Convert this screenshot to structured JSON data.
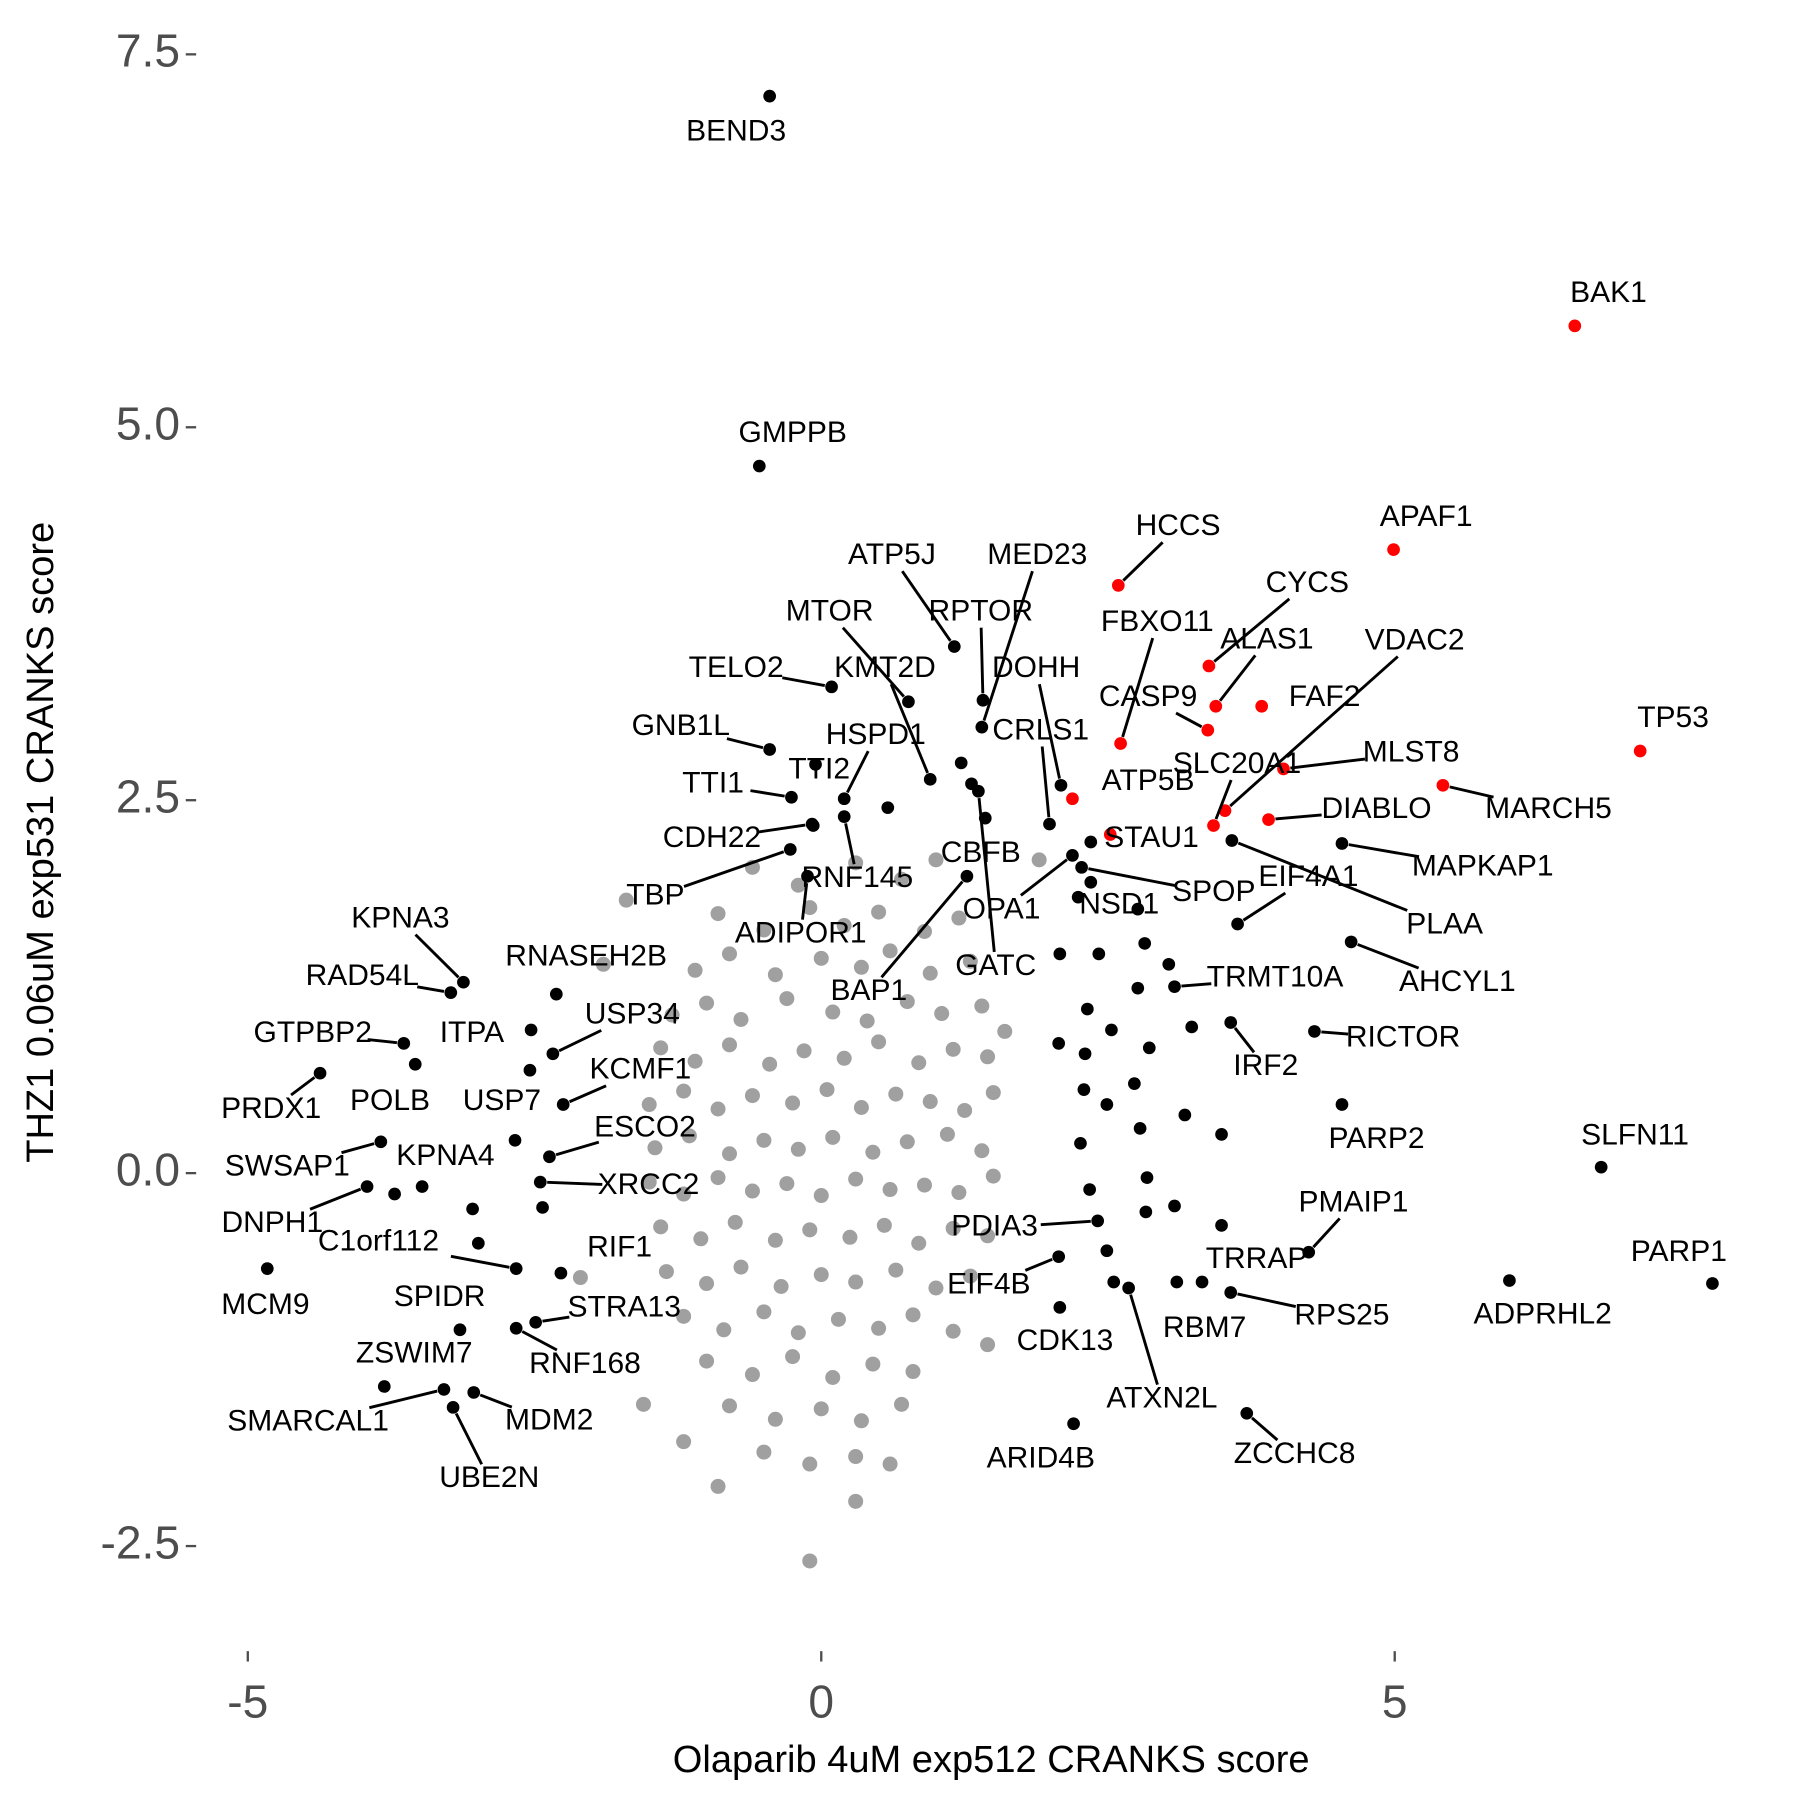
{
  "chart_data": {
    "type": "scatter",
    "xlabel": "Olaparib 4uM exp512 CRANKS score",
    "ylabel": "THZ1 0.06uM exp531 CRANKS score",
    "xlim": [
      -5.41,
      7.94
    ],
    "ylim": [
      -2.81,
      7.64
    ],
    "xticks": [
      -5,
      0,
      5
    ],
    "yticks": [
      7.5,
      {
        "value": 5,
        "label": "5.0"
      },
      2.5,
      {
        "value": 0,
        "label": "0.0"
      },
      -2.5
    ],
    "grid": false,
    "series": [
      {
        "color": "#a0a0a0",
        "x": [
          -0.6,
          -0.2,
          0.3,
          0.7,
          1.0,
          -0.9,
          -0.5,
          -0.1,
          0.2,
          0.5,
          0.9,
          1.2,
          -1.1,
          -0.8,
          -0.4,
          0.0,
          0.35,
          0.6,
          0.95,
          1.3,
          -1.3,
          -1.0,
          -0.7,
          -0.3,
          0.1,
          0.4,
          0.75,
          1.05,
          1.4,
          -1.4,
          -1.1,
          -0.8,
          -0.45,
          -0.15,
          0.2,
          0.5,
          0.85,
          1.15,
          1.45,
          -1.5,
          -1.2,
          -0.9,
          -0.6,
          -0.25,
          0.05,
          0.35,
          0.65,
          0.95,
          1.25,
          1.5,
          -1.45,
          -1.15,
          -0.8,
          -0.5,
          -0.2,
          0.1,
          0.45,
          0.75,
          1.1,
          1.4,
          -1.5,
          -1.2,
          -0.9,
          -0.6,
          -0.3,
          0.0,
          0.3,
          0.6,
          0.9,
          1.2,
          1.5,
          -1.4,
          -1.05,
          -0.75,
          -0.4,
          -0.1,
          0.25,
          0.55,
          0.85,
          1.15,
          1.45,
          -1.35,
          -1.0,
          -0.7,
          -0.35,
          0.0,
          0.3,
          0.65,
          1.0,
          1.3,
          -1.2,
          -0.85,
          -0.5,
          -0.2,
          0.15,
          0.5,
          0.8,
          1.15,
          -1.0,
          -0.6,
          -0.25,
          0.1,
          0.45,
          0.8,
          -0.8,
          -0.4,
          0.0,
          0.35,
          0.7,
          -0.5,
          -0.1,
          0.3,
          -1.7,
          -1.55,
          -1.2,
          -0.9,
          -0.1,
          0.3,
          0.6,
          1.45,
          1.6,
          1.9,
          -1.9,
          -2.1
        ],
        "y": [
          2.05,
          1.93,
          2.08,
          1.97,
          2.1,
          1.74,
          1.63,
          1.78,
          1.66,
          1.75,
          1.62,
          1.71,
          1.36,
          1.47,
          1.33,
          1.44,
          1.38,
          1.49,
          1.34,
          1.42,
          1.06,
          1.14,
          1.03,
          1.17,
          1.08,
          1.02,
          1.15,
          1.07,
          1.12,
          0.84,
          0.75,
          0.86,
          0.73,
          0.82,
          0.77,
          0.88,
          0.74,
          0.83,
          0.78,
          0.46,
          0.55,
          0.43,
          0.52,
          0.47,
          0.56,
          0.44,
          0.53,
          0.48,
          0.42,
          0.54,
          0.17,
          0.25,
          0.13,
          0.22,
          0.16,
          0.24,
          0.14,
          0.21,
          0.26,
          0.15,
          -0.06,
          -0.14,
          -0.03,
          -0.12,
          -0.07,
          -0.15,
          -0.04,
          -0.11,
          -0.08,
          -0.13,
          -0.02,
          -0.36,
          -0.44,
          -0.33,
          -0.45,
          -0.38,
          -0.43,
          -0.35,
          -0.47,
          -0.37,
          -0.42,
          -0.66,
          -0.74,
          -0.63,
          -0.76,
          -0.68,
          -0.73,
          -0.65,
          -0.77,
          -0.69,
          -0.96,
          -1.05,
          -0.93,
          -1.07,
          -0.98,
          -1.04,
          -0.95,
          -1.06,
          -1.26,
          -1.35,
          -1.23,
          -1.37,
          -1.28,
          -1.33,
          -1.56,
          -1.65,
          -1.58,
          -1.66,
          -1.55,
          -1.87,
          -1.95,
          -1.9,
          1.83,
          -1.55,
          -1.8,
          -2.1,
          -2.6,
          -2.2,
          -1.95,
          -1.15,
          0.95,
          2.1,
          1.4,
          -0.7
        ]
      },
      {
        "color": "#000000",
        "x": [
          -0.07,
          0.58,
          1.22,
          1.31,
          2.24,
          2.76,
          2.82,
          3.03,
          2.76,
          2.32,
          2.53,
          2.07,
          2.3,
          2.86,
          3.23,
          2.73,
          2.29,
          2.49,
          2.78,
          3.17,
          3.49,
          2.26,
          2.84,
          2.34,
          2.83,
          3.08,
          2.49,
          2.55,
          3.1,
          -2.67,
          -2.43,
          -2.99,
          -3.04,
          -3.72,
          2.08,
          2.42,
          2.35
        ],
        "y": [
          2.33,
          2.45,
          2.75,
          2.61,
          1.85,
          1.77,
          1.54,
          1.4,
          1.24,
          1.1,
          0.96,
          0.87,
          0.8,
          0.84,
          0.98,
          0.6,
          0.56,
          0.46,
          0.3,
          0.39,
          0.26,
          0.2,
          -0.03,
          -0.11,
          -0.26,
          -0.22,
          -0.52,
          -0.73,
          -0.73,
          0.22,
          -0.23,
          -0.47,
          -0.24,
          -0.14,
          1.47,
          1.47,
          2.22
        ]
      },
      {
        "color": "#000000",
        "labels": [
          "BEND3",
          "GMPPB",
          "ATP5J",
          "MED23",
          "MTOR",
          "RPTOR",
          "TELO2",
          "KMT2D",
          "GNB1L",
          "TTI1",
          "TTI2",
          "HSPD1",
          "DOHH",
          "CRLS1",
          "CDH22",
          "TBP",
          "RNF145",
          "ADIPOR1",
          "CBFB",
          "OPA1",
          "BAP1",
          "GATC",
          "NSD1",
          "SPOP",
          "PLAA",
          "EIF4A1",
          "MAPKAP1",
          "AHCYL1",
          "TRMT10A",
          "RICTOR",
          "IRF2",
          "PARP2",
          "SLFN11",
          "PMAIP1",
          "PARP1",
          "ADPRHL2",
          "TRRAP",
          "RPS25",
          "RBM7",
          "ZCCHC8",
          "ATXN2L",
          "CDK13",
          "ARID4B",
          "EIF4B",
          "PDIA3",
          "KPNA3",
          "RAD54L",
          "RNASEH2B",
          "ITPA",
          "USP34",
          "GTPBP2",
          "POLB",
          "KCMF1",
          "USP7",
          "PRDX1",
          "ESCO2",
          "KPNA4",
          "XRCC2",
          "SWSAP1",
          "DNPH1",
          "C1orf112",
          "RIF1",
          "MCM9",
          "SPIDR",
          "STRA13",
          "ZSWIM7",
          "RNF168",
          "SMARCAL1",
          "MDM2",
          "UBE2N"
        ],
        "x": [
          -0.45,
          -0.54,
          1.16,
          1.4,
          0.76,
          1.41,
          0.09,
          0.95,
          -0.45,
          -0.26,
          -0.05,
          0.2,
          2.09,
          1.99,
          -0.08,
          -0.27,
          0.2,
          -0.12,
          1.43,
          2.19,
          1.27,
          1.37,
          2.35,
          2.27,
          3.58,
          3.63,
          4.54,
          4.62,
          3.08,
          4.3,
          3.57,
          4.54,
          6.8,
          4.25,
          7.77,
          6.0,
          3.49,
          3.57,
          3.32,
          3.71,
          2.68,
          2.08,
          2.2,
          2.07,
          2.41,
          -3.12,
          -3.23,
          -2.31,
          -2.53,
          -2.34,
          -3.64,
          -3.54,
          -2.25,
          -2.54,
          -4.37,
          -2.37,
          -3.48,
          -2.45,
          -3.84,
          -3.96,
          -2.66,
          -2.27,
          -4.83,
          -3.15,
          -2.49,
          -3.81,
          -2.66,
          -3.29,
          -3.03,
          -3.21
        ],
        "y": [
          7.22,
          4.74,
          3.53,
          2.99,
          3.16,
          3.17,
          3.26,
          2.64,
          2.84,
          2.52,
          2.74,
          2.51,
          2.6,
          2.34,
          2.34,
          2.17,
          2.39,
          1.99,
          2.38,
          2.13,
          1.99,
          2.56,
          1.95,
          2.05,
          2.23,
          1.67,
          2.21,
          1.55,
          1.25,
          0.95,
          1.01,
          0.46,
          0.04,
          -0.53,
          -0.74,
          -0.72,
          -0.35,
          -0.8,
          -0.73,
          -1.61,
          -0.77,
          -0.9,
          -1.68,
          -0.56,
          -0.32,
          1.28,
          1.21,
          1.2,
          0.96,
          0.8,
          0.87,
          0.73,
          0.46,
          0.69,
          0.67,
          0.11,
          -0.09,
          -0.06,
          0.21,
          -0.09,
          -0.64,
          -0.67,
          -0.64,
          -1.05,
          -1.0,
          -1.43,
          -1.04,
          -1.45,
          -1.47,
          -1.57
        ]
      },
      {
        "color": "#ff0000",
        "labels": [
          "BAK1",
          "APAF1",
          "HCCS",
          "CYCS",
          "ALAS1",
          "FAF2",
          "CASP9",
          "FBXO11",
          "MLST8",
          "MARCH5",
          "TP53",
          "ATP5B",
          "VDAC2",
          "DIABLO",
          "SLC20A1",
          "STAU1"
        ],
        "x": [
          6.57,
          4.99,
          2.59,
          3.38,
          3.44,
          3.84,
          3.37,
          2.61,
          4.03,
          5.42,
          7.14,
          2.19,
          3.52,
          3.9,
          3.42,
          2.52
        ],
        "y": [
          5.68,
          4.18,
          3.94,
          3.4,
          3.13,
          3.13,
          2.97,
          2.88,
          2.71,
          2.6,
          2.83,
          2.51,
          2.43,
          2.37,
          2.33,
          2.27
        ]
      }
    ]
  }
}
